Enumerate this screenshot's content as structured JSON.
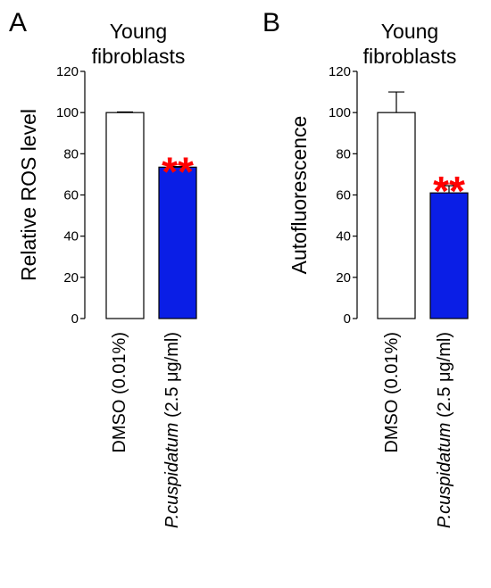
{
  "chart_data": [
    {
      "type": "bar",
      "panel_letter": "A",
      "title": "Young fibroblasts",
      "title_lines": [
        "Young",
        "fibroblasts"
      ],
      "ylabel": "Relative ROS level",
      "ylim": [
        0,
        120
      ],
      "yticks": [
        0,
        20,
        40,
        60,
        80,
        100,
        120
      ],
      "categories": [
        {
          "plain": "DMSO (0.01%)",
          "italic": "",
          "rest": ""
        },
        {
          "plain": "",
          "italic": "P.cuspidatum",
          "rest": " (2.5 μg/ml)"
        }
      ],
      "values": [
        100,
        73.5
      ],
      "errors": [
        0.3,
        0.3
      ],
      "bar_colors": [
        "#ffffff",
        "#0a1ee6"
      ],
      "annotations": [
        {
          "category_index": 1,
          "text": "**",
          "color": "#ff0000"
        }
      ],
      "grid": false
    },
    {
      "type": "bar",
      "panel_letter": "B",
      "title": "Young fibroblasts",
      "title_lines": [
        "Young",
        "fibroblasts"
      ],
      "ylabel": "Autofluorescence",
      "ylim": [
        0,
        120
      ],
      "yticks": [
        0,
        20,
        40,
        60,
        80,
        100,
        120
      ],
      "categories": [
        {
          "plain": "DMSO (0.01%)",
          "italic": "",
          "rest": ""
        },
        {
          "plain": "",
          "italic": "P.cuspidatum",
          "rest": " (2.5 μg/ml)"
        }
      ],
      "values": [
        100,
        61
      ],
      "errors": [
        10,
        3.5
      ],
      "bar_colors": [
        "#ffffff",
        "#0a1ee6"
      ],
      "annotations": [
        {
          "category_index": 1,
          "text": "**",
          "color": "#ff0000"
        }
      ],
      "grid": false
    }
  ]
}
